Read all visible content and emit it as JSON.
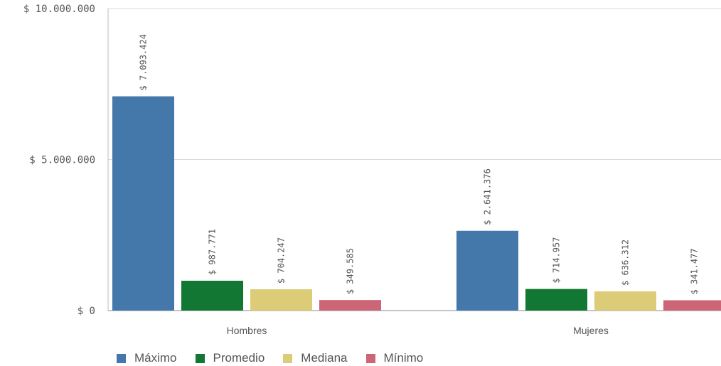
{
  "chart_data": {
    "type": "bar",
    "categories": [
      "Hombres",
      "Mujeres"
    ],
    "series": [
      {
        "name": "Máximo",
        "color": "#4477aa",
        "values": [
          7093424,
          2641376
        ],
        "labels": [
          "$ 7.093.424",
          "$ 2.641.376"
        ]
      },
      {
        "name": "Promedio",
        "color": "#117733",
        "values": [
          987771,
          714957
        ],
        "labels": [
          "$ 987.771",
          "$ 714.957"
        ]
      },
      {
        "name": "Mediana",
        "color": "#ddcc77",
        "values": [
          704247,
          636312
        ],
        "labels": [
          "$ 704.247",
          "$ 636.312"
        ]
      },
      {
        "name": "Mínimo",
        "color": "#cc6677",
        "values": [
          349585,
          341477
        ],
        "labels": [
          "$ 349.585",
          "$ 341.477"
        ]
      }
    ],
    "ylim": [
      0,
      10000000
    ],
    "yticks": [
      0,
      5000000,
      10000000
    ],
    "ytick_labels": [
      "$ 0",
      "$ 5.000.000",
      "$ 10.000.000"
    ],
    "grid": true,
    "legend_position": "bottom-left"
  }
}
